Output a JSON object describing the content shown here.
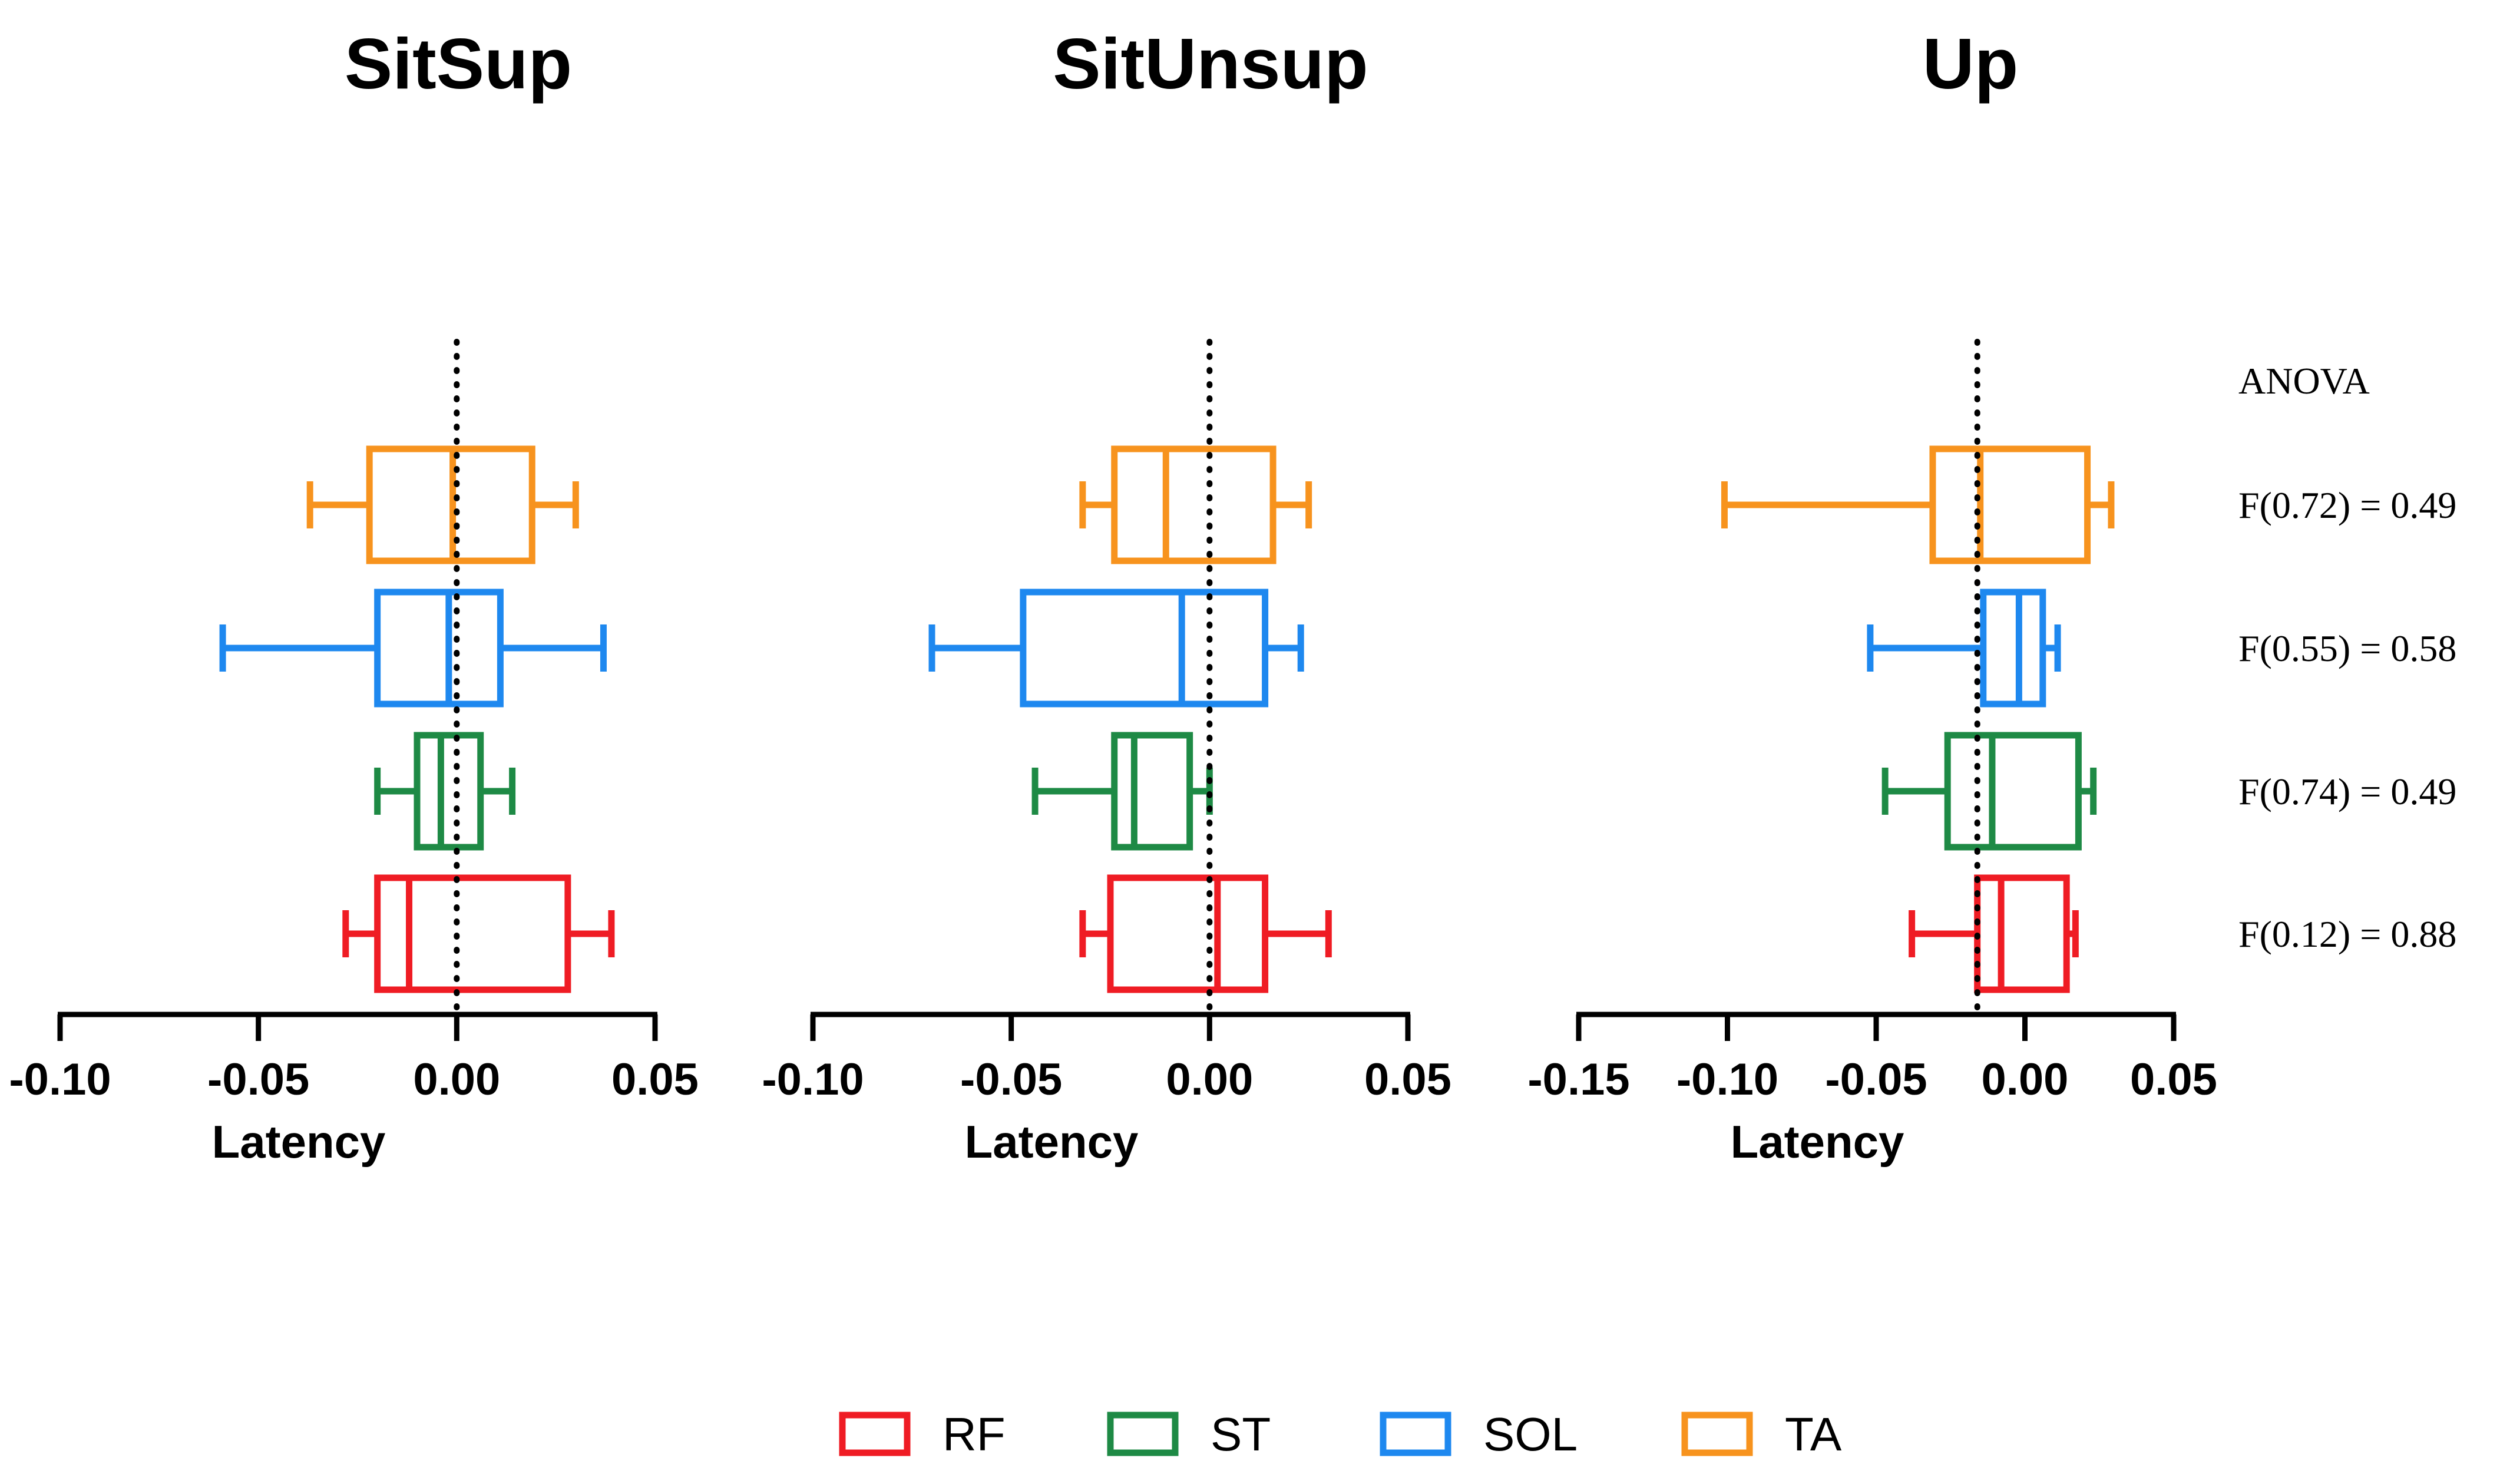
{
  "chart_data": {
    "type": "boxplot",
    "orientation": "horizontal",
    "categories": [
      "RF",
      "ST",
      "SOL",
      "TA"
    ],
    "colors": {
      "RF": "#ef1c24",
      "ST": "#1e8a45",
      "SOL": "#1e88ef",
      "TA": "#f7931e"
    },
    "reference_line": "dotted vertical",
    "legend": {
      "placement": "bottom-center",
      "entries": [
        "RF",
        "ST",
        "SOL",
        "TA"
      ]
    },
    "panels": [
      {
        "title": "SitSup",
        "xlabel": "Latency",
        "xlim": [
          -0.1,
          0.05
        ],
        "ticks": [
          "-0.10",
          "-0.05",
          "0.00",
          "0.05"
        ],
        "tick_values": [
          -0.1,
          -0.05,
          0.0,
          0.05
        ],
        "ref_x": 0.0,
        "boxes": {
          "RF": {
            "min": -0.028,
            "q1": -0.02,
            "median": -0.012,
            "q3": 0.028,
            "max": 0.039
          },
          "ST": {
            "min": -0.02,
            "q1": -0.01,
            "median": -0.004,
            "q3": 0.006,
            "max": 0.014
          },
          "SOL": {
            "min": -0.059,
            "q1": -0.02,
            "median": -0.002,
            "q3": 0.011,
            "max": 0.037
          },
          "TA": {
            "min": -0.037,
            "q1": -0.022,
            "median": -0.001,
            "q3": 0.019,
            "max": 0.03
          }
        }
      },
      {
        "title": "SitUnsup",
        "xlabel": "Latency",
        "xlim": [
          -0.1,
          0.05
        ],
        "ticks": [
          "-0.10",
          "-0.05",
          "0.00",
          "0.05"
        ],
        "tick_values": [
          -0.1,
          -0.05,
          0.0,
          0.05
        ],
        "ref_x": 0.0,
        "boxes": {
          "RF": {
            "min": -0.032,
            "q1": -0.025,
            "median": 0.002,
            "q3": 0.014,
            "max": 0.03
          },
          "ST": {
            "min": -0.044,
            "q1": -0.024,
            "median": -0.019,
            "q3": -0.005,
            "max": 0.0
          },
          "SOL": {
            "min": -0.07,
            "q1": -0.047,
            "median": -0.007,
            "q3": 0.014,
            "max": 0.023
          },
          "TA": {
            "min": -0.032,
            "q1": -0.024,
            "median": -0.011,
            "q3": 0.016,
            "max": 0.025
          }
        }
      },
      {
        "title": "Up",
        "xlabel": "Latency",
        "xlim": [
          -0.15,
          0.05
        ],
        "ticks": [
          "-0.15",
          "-0.10",
          "-0.05",
          "0.00",
          "0.05"
        ],
        "tick_values": [
          -0.15,
          -0.1,
          -0.05,
          0.0,
          0.05
        ],
        "ref_x": -0.016,
        "boxes": {
          "RF": {
            "min": -0.038,
            "q1": -0.016,
            "median": -0.008,
            "q3": 0.014,
            "max": 0.017
          },
          "ST": {
            "min": -0.047,
            "q1": -0.026,
            "median": -0.011,
            "q3": 0.018,
            "max": 0.023
          },
          "SOL": {
            "min": -0.052,
            "q1": -0.014,
            "median": -0.002,
            "q3": 0.006,
            "max": 0.011
          },
          "TA": {
            "min": -0.101,
            "q1": -0.031,
            "median": -0.015,
            "q3": 0.021,
            "max": 0.029
          }
        }
      }
    ],
    "annotations": {
      "header": "ANOVA",
      "lines": [
        {
          "category": "TA",
          "text": "F(0.72) = 0.49"
        },
        {
          "category": "SOL",
          "text": "F(0.55) = 0.58"
        },
        {
          "category": "ST",
          "text": "F(0.74) = 0.49"
        },
        {
          "category": "RF",
          "text": "F(0.12) = 0.88"
        }
      ]
    }
  }
}
